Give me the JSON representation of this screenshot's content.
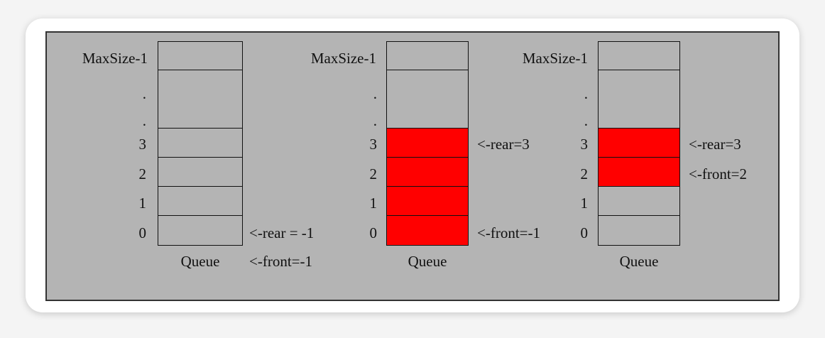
{
  "colors": {
    "background": "#b4b4b4",
    "filled": "#ff0000",
    "border": "#111111"
  },
  "queues": [
    {
      "index_labels": [
        "MaxSize-1",
        ".",
        ".",
        "3",
        "2",
        "1",
        "0"
      ],
      "filled": [
        false,
        false,
        false,
        false,
        false,
        false
      ],
      "caption": "Queue",
      "pointers": [
        {
          "slot": "0",
          "text": "<-rear = -1"
        },
        {
          "slot": "caption",
          "text": "<-front=-1"
        }
      ]
    },
    {
      "index_labels": [
        "MaxSize-1",
        ".",
        ".",
        "3",
        "2",
        "1",
        "0"
      ],
      "filled": [
        false,
        false,
        true,
        true,
        true,
        true
      ],
      "caption": "Queue",
      "pointers": [
        {
          "slot": "3",
          "text": "<-rear=3"
        },
        {
          "slot": "0",
          "text": "<-front=-1"
        }
      ]
    },
    {
      "index_labels": [
        "MaxSize-1",
        ".",
        ".",
        "3",
        "2",
        "1",
        "0"
      ],
      "filled": [
        false,
        false,
        true,
        true,
        false,
        false
      ],
      "caption": "Queue",
      "pointers": [
        {
          "slot": "3",
          "text": "<-rear=3"
        },
        {
          "slot": "2",
          "text": "<-front=2"
        }
      ]
    }
  ]
}
